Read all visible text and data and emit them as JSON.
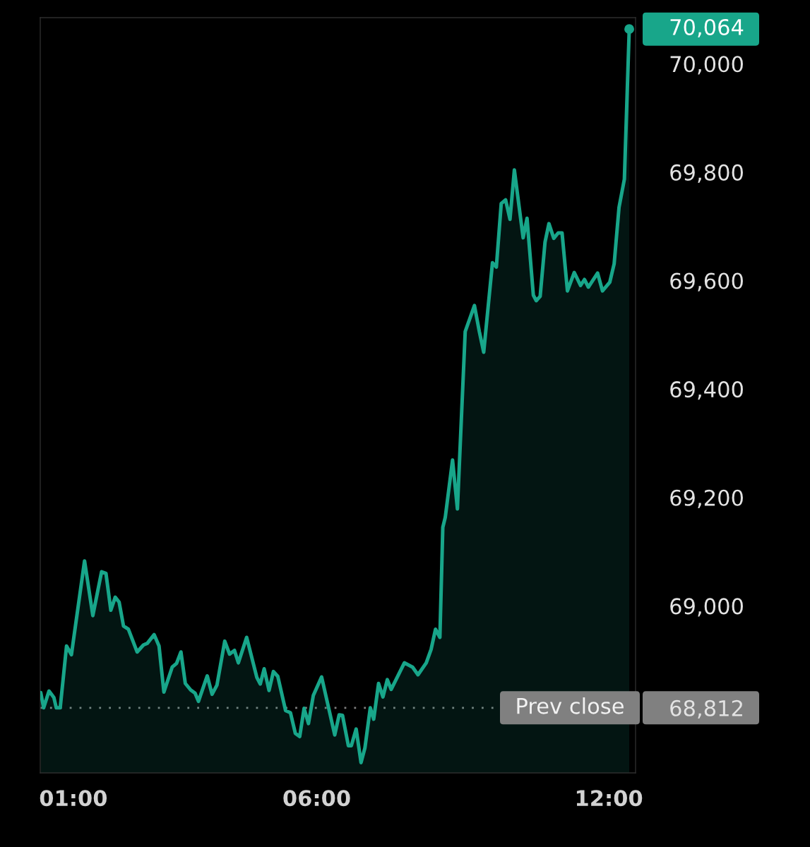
{
  "chart_data": {
    "type": "area",
    "x": [
      0.33,
      0.39,
      0.5,
      0.6,
      0.65,
      0.73,
      0.86,
      0.96,
      1.23,
      1.4,
      1.58,
      1.67,
      1.77,
      1.86,
      1.94,
      2.03,
      2.13,
      2.31,
      2.44,
      2.52,
      2.66,
      2.76,
      2.86,
      3.03,
      3.12,
      3.21,
      3.3,
      3.41,
      3.5,
      3.57,
      3.75,
      3.85,
      3.95,
      4.11,
      4.21,
      4.31,
      4.39,
      4.56,
      4.77,
      4.84,
      4.92,
      5.02,
      5.11,
      5.2,
      5.36,
      5.46,
      5.56,
      5.65,
      5.74,
      5.83,
      5.93,
      6.1,
      6.37,
      6.46,
      6.53,
      6.65,
      6.71,
      6.81,
      6.91,
      6.99,
      7.1,
      7.17,
      7.27,
      7.36,
      7.45,
      7.53,
      7.8,
      7.97,
      8.08,
      8.25,
      8.35,
      8.44,
      8.53,
      8.59,
      8.64,
      8.79,
      8.89,
      9.05,
      9.24,
      9.34,
      9.43,
      9.61,
      9.69,
      9.79,
      9.88,
      9.97,
      10.06,
      10.24,
      10.32,
      10.45,
      10.51,
      10.59,
      10.69,
      10.77,
      10.87,
      10.96,
      11.04,
      11.15,
      11.29,
      11.42,
      11.5,
      11.58,
      11.77,
      11.87,
      12.02,
      12.11,
      12.21,
      12.32,
      12.42
    ],
    "series": [
      {
        "color": "#18a68a",
        "values": [
          68840,
          68812,
          68843,
          68831,
          68812,
          68812,
          68926,
          68910,
          69083,
          68982,
          69063,
          69060,
          68992,
          69016,
          69007,
          68963,
          68957,
          68915,
          68928,
          68931,
          68947,
          68926,
          68841,
          68887,
          68894,
          68915,
          68857,
          68845,
          68839,
          68824,
          68871,
          68837,
          68854,
          68935,
          68911,
          68918,
          68895,
          68942,
          68868,
          68856,
          68884,
          68844,
          68879,
          68870,
          68807,
          68803,
          68765,
          68759,
          68811,
          68783,
          68835,
          68869,
          68762,
          68799,
          68798,
          68742,
          68742,
          68773,
          68711,
          68738,
          68812,
          68791,
          68857,
          68832,
          68864,
          68846,
          68895,
          68887,
          68873,
          68895,
          68920,
          68957,
          68942,
          69145,
          69163,
          69269,
          69179,
          69506,
          69554,
          69506,
          69468,
          69633,
          69625,
          69742,
          69749,
          69713,
          69804,
          69679,
          69715,
          69573,
          69563,
          69571,
          69671,
          69705,
          69678,
          69688,
          69688,
          69581,
          69615,
          69591,
          69602,
          69588,
          69614,
          69581,
          69597,
          69631,
          69735,
          69787,
          70064
        ]
      }
    ],
    "xlim": [
      0.32,
      12.55
    ],
    "ylim": [
      68692,
      70085
    ],
    "xticks": [
      {
        "value": 1,
        "label": "01:00"
      },
      {
        "value": 6,
        "label": "06:00"
      },
      {
        "value": 12,
        "label": "12:00"
      }
    ],
    "yticks": [
      {
        "value": 68812,
        "label": "68,812"
      },
      {
        "value": 69000,
        "label": "69,000"
      },
      {
        "value": 69200,
        "label": "69,200"
      },
      {
        "value": 69400,
        "label": "69,400"
      },
      {
        "value": 69600,
        "label": "69,600"
      },
      {
        "value": 69800,
        "label": "69,800"
      },
      {
        "value": 70000,
        "label": "70,000"
      }
    ],
    "ref_lines": [
      {
        "axis": "y",
        "value": 68812,
        "label": "Prev close",
        "color": "#808080",
        "line_style": "dotted"
      }
    ],
    "annotations": [
      {
        "text": "70,064",
        "x": 12.42,
        "y": 70064
      }
    ]
  }
}
